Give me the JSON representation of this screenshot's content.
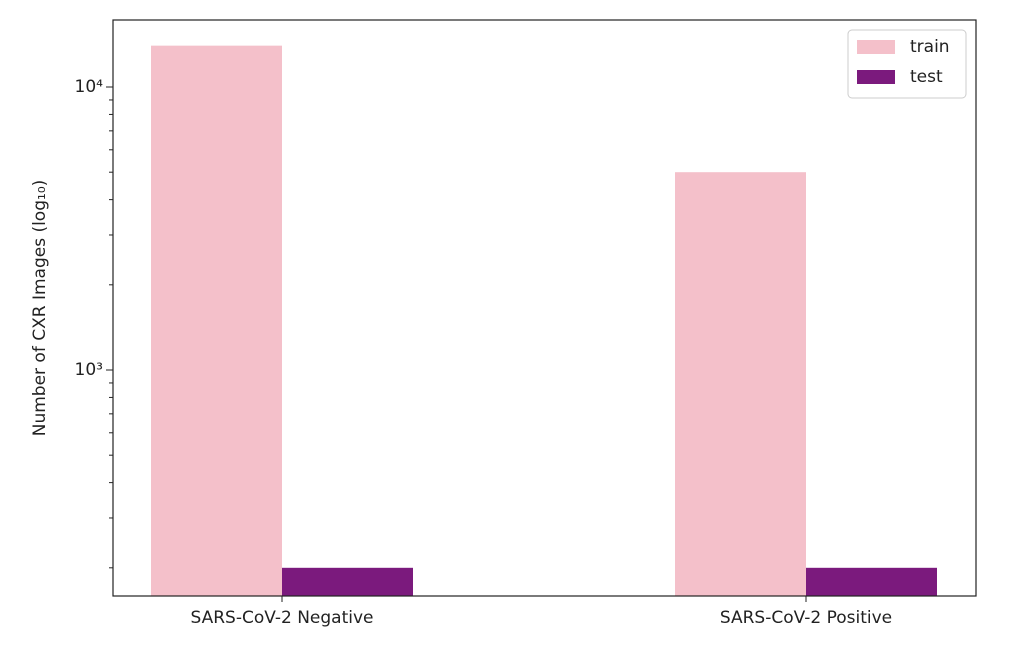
{
  "chart_data": {
    "type": "bar",
    "ylabel": "Number of CXR Images (log₁₀)",
    "categories": [
      "SARS-CoV-2 Negative",
      "SARS-CoV-2 Positive"
    ],
    "series": [
      {
        "name": "train",
        "color": "#f4c0ca",
        "values": [
          14000,
          5000
        ]
      },
      {
        "name": "test",
        "color": "#7b1a7d",
        "values": [
          200,
          200
        ]
      }
    ],
    "ylim": [
      159,
      17250
    ],
    "log_y": true,
    "yticks": [
      {
        "value": 1000,
        "label": "10³"
      },
      {
        "value": 10000,
        "label": "10⁴"
      }
    ],
    "yminorticks": [
      200,
      300,
      400,
      500,
      600,
      700,
      800,
      900,
      2000,
      3000,
      4000,
      5000,
      6000,
      7000,
      8000,
      9000
    ],
    "legend": "upper right"
  }
}
